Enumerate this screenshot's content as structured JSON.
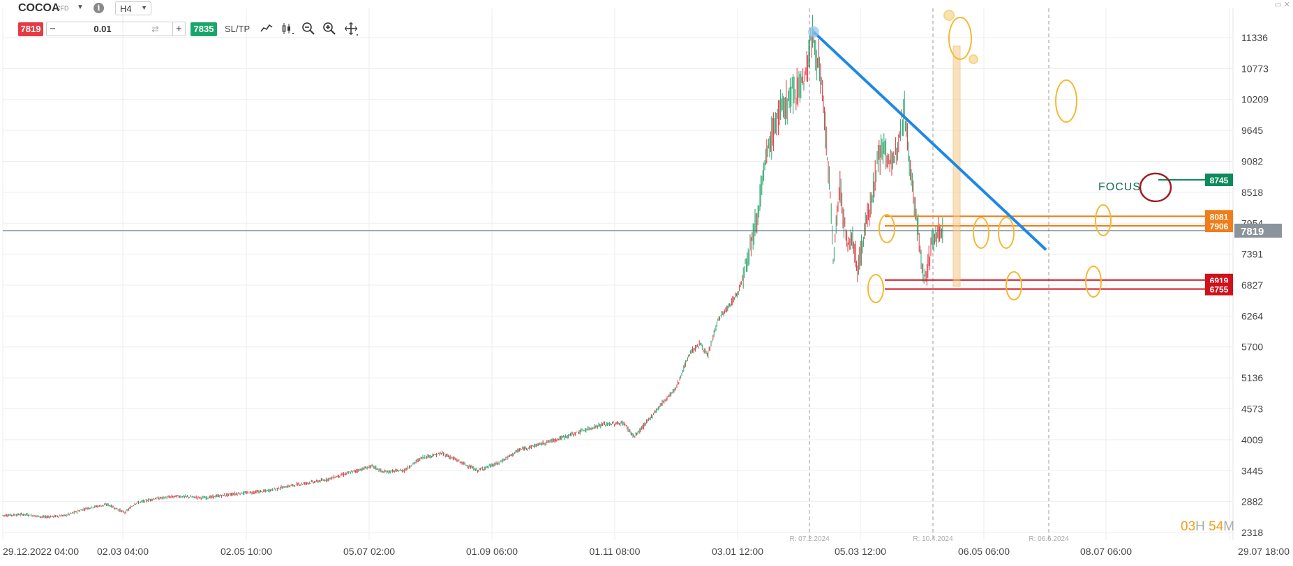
{
  "header": {
    "symbol": "COCOA",
    "instrument_type": "CFD",
    "timeframe": "H4",
    "sell_price": "7819",
    "volume": "0.01",
    "buy_price": "7835",
    "sltp_label": "SL/TP",
    "minus": "−",
    "plus": "+",
    "info_icon": "i"
  },
  "timer": {
    "hours": "03",
    "hours_unit": "H",
    "minutes": "54",
    "minutes_unit": "M"
  },
  "chart_data": {
    "type": "candlestick",
    "instrument": "COCOA",
    "timeframe": "H4",
    "y_ticks": [
      "11336",
      "10773",
      "10209",
      "9645",
      "9082",
      "8518",
      "7954",
      "7391",
      "6827",
      "6264",
      "5700",
      "5136",
      "4573",
      "4009",
      "3445",
      "2882",
      "2318"
    ],
    "x_ticks": [
      "29.12.2022 04:00",
      "02.03 04:00",
      "02.05 10:00",
      "05.07 02:00",
      "01.09 06:00",
      "01.11 08:00",
      "03.01 12:00",
      "05.03 12:00",
      "06.05 06:00",
      "08.07 06:00",
      "29.07 18:00"
    ],
    "ylim": [
      2318,
      11900
    ],
    "current_price": 7819,
    "price_path": [
      [
        0,
        2630
      ],
      [
        30,
        2650
      ],
      [
        60,
        2600
      ],
      [
        90,
        2630
      ],
      [
        120,
        2760
      ],
      [
        150,
        2830
      ],
      [
        175,
        2680
      ],
      [
        190,
        2850
      ],
      [
        215,
        2930
      ],
      [
        250,
        2980
      ],
      [
        290,
        2950
      ],
      [
        330,
        3020
      ],
      [
        375,
        3070
      ],
      [
        420,
        3190
      ],
      [
        460,
        3270
      ],
      [
        500,
        3420
      ],
      [
        530,
        3530
      ],
      [
        545,
        3420
      ],
      [
        575,
        3450
      ],
      [
        600,
        3680
      ],
      [
        630,
        3760
      ],
      [
        650,
        3640
      ],
      [
        680,
        3450
      ],
      [
        710,
        3580
      ],
      [
        740,
        3820
      ],
      [
        770,
        3930
      ],
      [
        800,
        4040
      ],
      [
        830,
        4170
      ],
      [
        860,
        4290
      ],
      [
        890,
        4310
      ],
      [
        905,
        4060
      ],
      [
        920,
        4280
      ],
      [
        945,
        4680
      ],
      [
        965,
        4950
      ],
      [
        985,
        5600
      ],
      [
        1000,
        5760
      ],
      [
        1010,
        5520
      ],
      [
        1025,
        6200
      ],
      [
        1040,
        6420
      ],
      [
        1055,
        6720
      ],
      [
        1065,
        7250
      ],
      [
        1080,
        8000
      ],
      [
        1095,
        9200
      ],
      [
        1110,
        9900
      ],
      [
        1125,
        10200
      ],
      [
        1140,
        10450
      ],
      [
        1150,
        10600
      ],
      [
        1160,
        11400
      ],
      [
        1170,
        10800
      ],
      [
        1178,
        9800
      ],
      [
        1185,
        8600
      ],
      [
        1190,
        7300
      ],
      [
        1200,
        8650
      ],
      [
        1210,
        7500
      ],
      [
        1218,
        7700
      ],
      [
        1225,
        7100
      ],
      [
        1235,
        7800
      ],
      [
        1245,
        8400
      ],
      [
        1255,
        9200
      ],
      [
        1265,
        9300
      ],
      [
        1275,
        8900
      ],
      [
        1285,
        9700
      ],
      [
        1292,
        10050
      ],
      [
        1298,
        9300
      ],
      [
        1305,
        8500
      ],
      [
        1312,
        7800
      ],
      [
        1318,
        7000
      ],
      [
        1325,
        7100
      ],
      [
        1333,
        7700
      ],
      [
        1340,
        7780
      ],
      [
        1347,
        7820
      ]
    ],
    "horizontal_levels": [
      {
        "price": 8745,
        "label": "8745",
        "color": "#0e8a5c"
      },
      {
        "price": 8081,
        "label": "8081",
        "color": "#ef7d1a"
      },
      {
        "price": 7906,
        "label": "7906",
        "color": "#ef7d1a"
      },
      {
        "price": 6919,
        "label": "6919",
        "color": "#d0101a"
      },
      {
        "price": 6755,
        "label": "6755",
        "color": "#d0101a"
      }
    ],
    "vertical_markers": [
      {
        "label": "R: 07.2.2024"
      },
      {
        "label": "R: 10.4.2024"
      },
      {
        "label": "R: 06.6.2024"
      }
    ],
    "trendline": {
      "from": [
        1162,
        11440
      ],
      "to": [
        1495,
        7470
      ],
      "color": "#1e88e5"
    },
    "annotation_text": "FOCUS",
    "colors": {
      "up": "#26a269",
      "down": "#e0323c",
      "highlight": "#f5b833",
      "current_line": "#546e7a",
      "current_tag": "#8a949c",
      "focus_circle": "#a01c24"
    }
  }
}
